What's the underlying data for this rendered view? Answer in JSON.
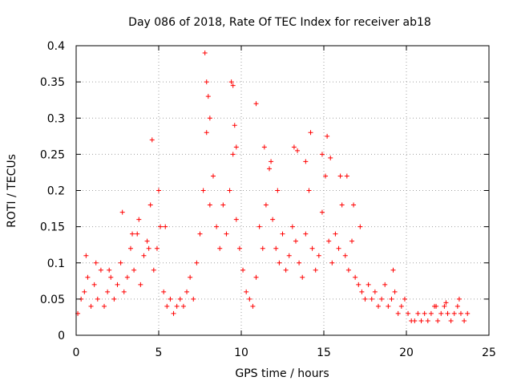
{
  "chart_data": {
    "type": "scatter",
    "title": "Day 086 of 2018, Rate Of TEC Index for receiver ab18",
    "xlabel": "GPS time / hours",
    "ylabel": "ROTI / TECUs",
    "xlim": [
      0,
      25
    ],
    "ylim": [
      0,
      0.4
    ],
    "xticks": [
      0,
      5,
      10,
      15,
      20,
      25
    ],
    "xtick_labels": [
      "0",
      "5",
      "10",
      "15",
      "20",
      "25"
    ],
    "yticks": [
      0,
      0.05,
      0.1,
      0.15,
      0.2,
      0.25,
      0.3,
      0.35,
      0.4
    ],
    "ytick_labels": [
      "0",
      "0.05",
      "0.1",
      "0.15",
      "0.2",
      "0.25",
      "0.3",
      "0.35",
      "0.4"
    ],
    "grid": true,
    "marker": "+",
    "series_color": "#ff0000",
    "series": [
      {
        "x": [
          0.1,
          0.3,
          0.5,
          0.7,
          0.9,
          1.1,
          1.3,
          1.5,
          1.7,
          1.9,
          2.1,
          2.3,
          2.5,
          2.7,
          2.9,
          3.1,
          3.3,
          3.5,
          3.7,
          3.9,
          4.1,
          4.3,
          4.5,
          4.7,
          4.9,
          5.1,
          5.3,
          5.5,
          5.7,
          5.9,
          6.1,
          6.3,
          6.5,
          6.7,
          6.9,
          7.1,
          7.3,
          7.5,
          7.7,
          7.9,
          8.1,
          8.3,
          8.5,
          8.7,
          8.9,
          9.1,
          9.3,
          9.5,
          9.7,
          9.9,
          10.1,
          10.3,
          10.5,
          10.7,
          10.9,
          11.1,
          11.3,
          11.5,
          11.7,
          11.9,
          12.1,
          12.3,
          12.5,
          12.7,
          12.9,
          13.1,
          13.3,
          13.5,
          13.7,
          13.9,
          14.1,
          14.3,
          14.5,
          14.7,
          14.9,
          15.1,
          15.3,
          15.5,
          15.7,
          15.9,
          16.1,
          16.3,
          16.5,
          16.7,
          16.9,
          17.1,
          17.3,
          17.5,
          17.7,
          17.9,
          18.1,
          18.3,
          18.5,
          18.7,
          18.9,
          19.1,
          19.3,
          19.5,
          19.7,
          19.9,
          20.1,
          20.3,
          20.5,
          20.7,
          20.9,
          21.1,
          21.3,
          21.5,
          21.7,
          21.9,
          22.1,
          22.3,
          22.5,
          22.7,
          22.9,
          23.1,
          23.3,
          23.5,
          23.7,
          0.6,
          1.2,
          2.0,
          2.8,
          3.4,
          3.8,
          4.4,
          4.6,
          5.0,
          5.4,
          7.8,
          7.9,
          8.0,
          8.1,
          9.4,
          9.5,
          9.6,
          9.7,
          10.9,
          11.4,
          11.8,
          12.2,
          13.2,
          13.4,
          13.9,
          14.2,
          14.9,
          15.2,
          15.4,
          16.0,
          16.4,
          16.8,
          17.2,
          19.2,
          21.8,
          22.4,
          23.2
        ],
        "y": [
          0.03,
          0.05,
          0.06,
          0.08,
          0.04,
          0.07,
          0.05,
          0.09,
          0.04,
          0.06,
          0.08,
          0.05,
          0.07,
          0.1,
          0.06,
          0.08,
          0.12,
          0.09,
          0.14,
          0.07,
          0.11,
          0.13,
          0.18,
          0.09,
          0.12,
          0.15,
          0.06,
          0.04,
          0.05,
          0.03,
          0.04,
          0.05,
          0.04,
          0.06,
          0.08,
          0.05,
          0.1,
          0.14,
          0.2,
          0.28,
          0.18,
          0.22,
          0.15,
          0.12,
          0.18,
          0.14,
          0.2,
          0.25,
          0.16,
          0.12,
          0.09,
          0.06,
          0.05,
          0.04,
          0.08,
          0.15,
          0.12,
          0.18,
          0.23,
          0.16,
          0.12,
          0.1,
          0.14,
          0.09,
          0.11,
          0.15,
          0.13,
          0.1,
          0.08,
          0.14,
          0.2,
          0.12,
          0.09,
          0.11,
          0.17,
          0.22,
          0.13,
          0.1,
          0.14,
          0.12,
          0.18,
          0.11,
          0.09,
          0.13,
          0.08,
          0.07,
          0.06,
          0.05,
          0.07,
          0.05,
          0.06,
          0.04,
          0.05,
          0.07,
          0.04,
          0.05,
          0.06,
          0.03,
          0.04,
          0.05,
          0.03,
          0.02,
          0.02,
          0.03,
          0.02,
          0.03,
          0.02,
          0.03,
          0.04,
          0.02,
          0.03,
          0.04,
          0.03,
          0.02,
          0.03,
          0.04,
          0.03,
          0.02,
          0.03,
          0.11,
          0.1,
          0.09,
          0.17,
          0.14,
          0.16,
          0.12,
          0.27,
          0.2,
          0.15,
          0.39,
          0.35,
          0.33,
          0.3,
          0.35,
          0.345,
          0.29,
          0.26,
          0.32,
          0.26,
          0.24,
          0.2,
          0.26,
          0.255,
          0.24,
          0.28,
          0.25,
          0.275,
          0.245,
          0.22,
          0.22,
          0.18,
          0.15,
          0.09,
          0.04,
          0.045,
          0.05
        ]
      }
    ]
  }
}
